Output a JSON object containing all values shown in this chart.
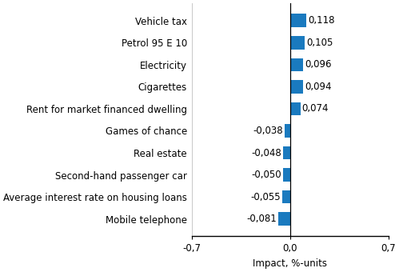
{
  "categories": [
    "Mobile telephone",
    "Average interest rate on housing loans",
    "Second-hand passenger car",
    "Real estate",
    "Games of chance",
    "Rent for market financed dwelling",
    "Cigarettes",
    "Electricity",
    "Petrol 95 E 10",
    "Vehicle tax"
  ],
  "values": [
    -0.081,
    -0.055,
    -0.05,
    -0.048,
    -0.038,
    0.074,
    0.094,
    0.096,
    0.105,
    0.118
  ],
  "labels": [
    "-0,081",
    "-0,055",
    "-0,050",
    "-0,048",
    "-0,038",
    "0,074",
    "0,094",
    "0,096",
    "0,105",
    "0,118"
  ],
  "bar_color": "#1a7abf",
  "xlabel": "Impact, %-units",
  "xlim": [
    -0.7,
    0.7
  ],
  "xtick_positions": [
    -0.7,
    0.0,
    0.7
  ],
  "xtick_labels": [
    "-0,7",
    "0,0",
    "0,7"
  ],
  "label_fontsize": 8.5,
  "tick_fontsize": 8.5,
  "value_fontsize": 8.5,
  "background_color": "#ffffff"
}
